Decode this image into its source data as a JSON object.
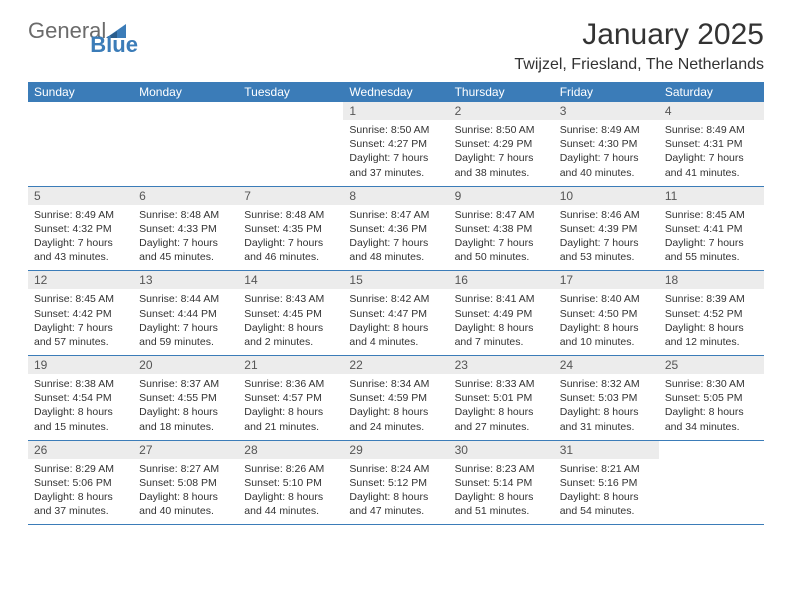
{
  "brand": {
    "part1": "General",
    "part2": "Blue"
  },
  "title": "January 2025",
  "location": "Twijzel, Friesland, The Netherlands",
  "colors": {
    "header_bg": "#3b7cb8",
    "header_text": "#ffffff",
    "daynum_bg": "#ececec",
    "border": "#3b7cb8",
    "text": "#333333"
  },
  "day_headers": [
    "Sunday",
    "Monday",
    "Tuesday",
    "Wednesday",
    "Thursday",
    "Friday",
    "Saturday"
  ],
  "weeks": [
    [
      null,
      null,
      null,
      {
        "n": "1",
        "sr": "8:50 AM",
        "ss": "4:27 PM",
        "dl": "7 hours and 37 minutes."
      },
      {
        "n": "2",
        "sr": "8:50 AM",
        "ss": "4:29 PM",
        "dl": "7 hours and 38 minutes."
      },
      {
        "n": "3",
        "sr": "8:49 AM",
        "ss": "4:30 PM",
        "dl": "7 hours and 40 minutes."
      },
      {
        "n": "4",
        "sr": "8:49 AM",
        "ss": "4:31 PM",
        "dl": "7 hours and 41 minutes."
      }
    ],
    [
      {
        "n": "5",
        "sr": "8:49 AM",
        "ss": "4:32 PM",
        "dl": "7 hours and 43 minutes."
      },
      {
        "n": "6",
        "sr": "8:48 AM",
        "ss": "4:33 PM",
        "dl": "7 hours and 45 minutes."
      },
      {
        "n": "7",
        "sr": "8:48 AM",
        "ss": "4:35 PM",
        "dl": "7 hours and 46 minutes."
      },
      {
        "n": "8",
        "sr": "8:47 AM",
        "ss": "4:36 PM",
        "dl": "7 hours and 48 minutes."
      },
      {
        "n": "9",
        "sr": "8:47 AM",
        "ss": "4:38 PM",
        "dl": "7 hours and 50 minutes."
      },
      {
        "n": "10",
        "sr": "8:46 AM",
        "ss": "4:39 PM",
        "dl": "7 hours and 53 minutes."
      },
      {
        "n": "11",
        "sr": "8:45 AM",
        "ss": "4:41 PM",
        "dl": "7 hours and 55 minutes."
      }
    ],
    [
      {
        "n": "12",
        "sr": "8:45 AM",
        "ss": "4:42 PM",
        "dl": "7 hours and 57 minutes."
      },
      {
        "n": "13",
        "sr": "8:44 AM",
        "ss": "4:44 PM",
        "dl": "7 hours and 59 minutes."
      },
      {
        "n": "14",
        "sr": "8:43 AM",
        "ss": "4:45 PM",
        "dl": "8 hours and 2 minutes."
      },
      {
        "n": "15",
        "sr": "8:42 AM",
        "ss": "4:47 PM",
        "dl": "8 hours and 4 minutes."
      },
      {
        "n": "16",
        "sr": "8:41 AM",
        "ss": "4:49 PM",
        "dl": "8 hours and 7 minutes."
      },
      {
        "n": "17",
        "sr": "8:40 AM",
        "ss": "4:50 PM",
        "dl": "8 hours and 10 minutes."
      },
      {
        "n": "18",
        "sr": "8:39 AM",
        "ss": "4:52 PM",
        "dl": "8 hours and 12 minutes."
      }
    ],
    [
      {
        "n": "19",
        "sr": "8:38 AM",
        "ss": "4:54 PM",
        "dl": "8 hours and 15 minutes."
      },
      {
        "n": "20",
        "sr": "8:37 AM",
        "ss": "4:55 PM",
        "dl": "8 hours and 18 minutes."
      },
      {
        "n": "21",
        "sr": "8:36 AM",
        "ss": "4:57 PM",
        "dl": "8 hours and 21 minutes."
      },
      {
        "n": "22",
        "sr": "8:34 AM",
        "ss": "4:59 PM",
        "dl": "8 hours and 24 minutes."
      },
      {
        "n": "23",
        "sr": "8:33 AM",
        "ss": "5:01 PM",
        "dl": "8 hours and 27 minutes."
      },
      {
        "n": "24",
        "sr": "8:32 AM",
        "ss": "5:03 PM",
        "dl": "8 hours and 31 minutes."
      },
      {
        "n": "25",
        "sr": "8:30 AM",
        "ss": "5:05 PM",
        "dl": "8 hours and 34 minutes."
      }
    ],
    [
      {
        "n": "26",
        "sr": "8:29 AM",
        "ss": "5:06 PM",
        "dl": "8 hours and 37 minutes."
      },
      {
        "n": "27",
        "sr": "8:27 AM",
        "ss": "5:08 PM",
        "dl": "8 hours and 40 minutes."
      },
      {
        "n": "28",
        "sr": "8:26 AM",
        "ss": "5:10 PM",
        "dl": "8 hours and 44 minutes."
      },
      {
        "n": "29",
        "sr": "8:24 AM",
        "ss": "5:12 PM",
        "dl": "8 hours and 47 minutes."
      },
      {
        "n": "30",
        "sr": "8:23 AM",
        "ss": "5:14 PM",
        "dl": "8 hours and 51 minutes."
      },
      {
        "n": "31",
        "sr": "8:21 AM",
        "ss": "5:16 PM",
        "dl": "8 hours and 54 minutes."
      },
      null
    ]
  ],
  "labels": {
    "sunrise": "Sunrise: ",
    "sunset": "Sunset: ",
    "daylight": "Daylight: "
  }
}
